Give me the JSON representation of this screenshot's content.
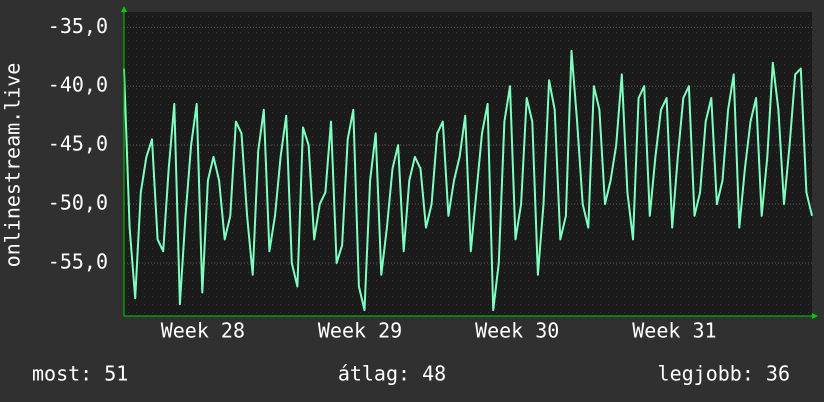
{
  "chart_data": {
    "type": "line",
    "y_label": "onlinestream.live",
    "color": "#7fffc0",
    "values": [
      -38.5,
      -52,
      -58,
      -49,
      -46,
      -44.5,
      -53,
      -54,
      -47,
      -41.5,
      -58.5,
      -51,
      -45,
      -41.5,
      -57.5,
      -48,
      -46,
      -48,
      -53,
      -51,
      -43,
      -44,
      -51,
      -56,
      -45.5,
      -42,
      -54,
      -51,
      -46,
      -42.5,
      -55,
      -57,
      -43.5,
      -45,
      -53,
      -50,
      -49,
      -43,
      -55,
      -53.5,
      -44.5,
      -42,
      -57,
      -59,
      -48,
      -44,
      -56,
      -52,
      -47,
      -45,
      -54,
      -48,
      -46,
      -47,
      -52,
      -50,
      -44,
      -43,
      -51,
      -48,
      -46,
      -42.5,
      -54,
      -49,
      -44,
      -41.5,
      -59,
      -55,
      -43,
      -40,
      -53,
      -50,
      -41,
      -43,
      -56,
      -50,
      -39.5,
      -42,
      -53,
      -51,
      -37,
      -43,
      -50,
      -52,
      -40,
      -42,
      -50,
      -48,
      -45,
      -39,
      -49,
      -53,
      -41,
      -40,
      -51,
      -46,
      -42,
      -41,
      -52,
      -46,
      -41,
      -40,
      -51,
      -49,
      -43,
      -41,
      -50,
      -48,
      -42,
      -39,
      -52,
      -47,
      -43,
      -41,
      -51,
      -46,
      -38,
      -42,
      -50,
      -45,
      -39,
      -38.5,
      -49,
      -51
    ],
    "xlim": [
      0,
      123
    ],
    "xticks": [
      {
        "value": 14.1,
        "label": "Week 28"
      },
      {
        "value": 42.2,
        "label": "Week 29"
      },
      {
        "value": 70.3,
        "label": "Week 30"
      },
      {
        "value": 98.4,
        "label": "Week 31"
      }
    ],
    "ylim": [
      -59.5,
      -33.7
    ],
    "yticks": [
      {
        "value": -35,
        "label": "-35,0"
      },
      {
        "value": -40,
        "label": "-40,0"
      },
      {
        "value": -45,
        "label": "-45,0"
      },
      {
        "value": -50,
        "label": "-50,0"
      },
      {
        "value": -55,
        "label": "-55,0"
      }
    ],
    "grid": true,
    "footer": [
      "most: 51",
      "átlag: 48",
      "legjobb: 36"
    ]
  }
}
